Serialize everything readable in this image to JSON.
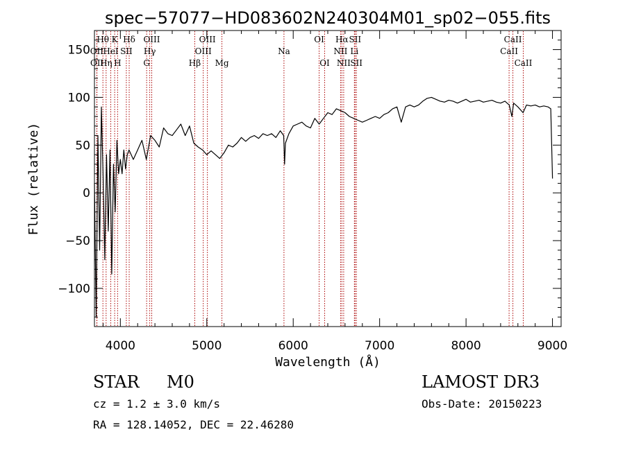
{
  "chart_data": {
    "type": "line",
    "title": "spec−57077−HD083602N240304M01_sp02−055.fits",
    "xlabel": "Wavelength (Å)",
    "ylabel": "Flux (relative)",
    "xlim": [
      3700,
      9100
    ],
    "ylim": [
      -140,
      170
    ],
    "x_ticks": [
      4000,
      5000,
      6000,
      7000,
      8000,
      9000
    ],
    "y_ticks": [
      -100,
      -50,
      0,
      50,
      100,
      150
    ],
    "y_tick_labels": [
      "−100",
      "−50",
      "0",
      "50",
      "100",
      "150"
    ],
    "series": [
      {
        "name": "spectrum",
        "x": [
          3700,
          3720,
          3740,
          3760,
          3780,
          3800,
          3820,
          3840,
          3860,
          3880,
          3900,
          3920,
          3940,
          3960,
          3980,
          4000,
          4020,
          4040,
          4060,
          4080,
          4100,
          4150,
          4200,
          4250,
          4300,
          4350,
          4400,
          4450,
          4500,
          4550,
          4600,
          4650,
          4700,
          4750,
          4800,
          4850,
          4900,
          4950,
          5000,
          5050,
          5100,
          5150,
          5200,
          5250,
          5300,
          5350,
          5400,
          5450,
          5500,
          5550,
          5600,
          5650,
          5700,
          5750,
          5800,
          5850,
          5890,
          5900,
          5910,
          5950,
          6000,
          6050,
          6100,
          6150,
          6200,
          6250,
          6300,
          6350,
          6400,
          6450,
          6500,
          6550,
          6600,
          6650,
          6700,
          6750,
          6800,
          6850,
          6900,
          6950,
          7000,
          7050,
          7100,
          7150,
          7200,
          7250,
          7300,
          7350,
          7400,
          7450,
          7500,
          7550,
          7600,
          7650,
          7700,
          7750,
          7800,
          7850,
          7900,
          7950,
          8000,
          8050,
          8100,
          8150,
          8200,
          8250,
          8300,
          8350,
          8400,
          8450,
          8500,
          8530,
          8550,
          8600,
          8660,
          8700,
          8750,
          8800,
          8850,
          8900,
          8950,
          8980,
          9000
        ],
        "values": [
          10,
          -130,
          60,
          -60,
          90,
          20,
          -70,
          40,
          -40,
          45,
          -85,
          30,
          -20,
          55,
          20,
          35,
          20,
          45,
          25,
          40,
          45,
          35,
          45,
          55,
          35,
          60,
          55,
          48,
          68,
          62,
          60,
          66,
          72,
          60,
          70,
          52,
          48,
          45,
          40,
          44,
          40,
          36,
          42,
          50,
          48,
          52,
          58,
          54,
          58,
          60,
          57,
          62,
          60,
          62,
          58,
          65,
          60,
          30,
          52,
          62,
          70,
          72,
          74,
          70,
          68,
          78,
          72,
          78,
          84,
          82,
          88,
          86,
          84,
          80,
          78,
          76,
          74,
          76,
          78,
          80,
          78,
          82,
          84,
          88,
          90,
          74,
          90,
          92,
          90,
          92,
          96,
          99,
          100,
          98,
          96,
          95,
          97,
          96,
          94,
          96,
          98,
          95,
          96,
          97,
          95,
          96,
          97,
          95,
          94,
          96,
          92,
          80,
          94,
          90,
          84,
          92,
          91,
          92,
          90,
          91,
          90,
          88,
          15
        ]
      }
    ],
    "line_groups": [
      {
        "row": 1,
        "items": [
          [
            "Hθ",
            3798
          ],
          [
            "K",
            3934
          ],
          [
            "Hδ",
            4102
          ],
          [
            "OIII",
            4363
          ],
          [
            "OIII",
            5007
          ],
          [
            "OI",
            6300
          ],
          [
            "Hα",
            6563
          ],
          [
            "SII",
            6716
          ],
          [
            "CaII",
            8542
          ]
        ]
      },
      {
        "row": 2,
        "items": [
          [
            "OII",
            3727
          ],
          [
            "HeI",
            3889
          ],
          [
            "SII",
            4069
          ],
          [
            "Hγ",
            4340
          ],
          [
            "OIII",
            4959
          ],
          [
            "Na",
            5893
          ],
          [
            "NII",
            6548
          ],
          [
            "Li",
            6708
          ],
          [
            "CaII",
            8498
          ]
        ]
      },
      {
        "row": 3,
        "items": [
          [
            "OII",
            3729
          ],
          [
            "Hη",
            3835
          ],
          [
            "H",
            3968
          ],
          [
            "G",
            4304
          ],
          [
            "Hβ",
            4861
          ],
          [
            "Mg",
            5175
          ],
          [
            "OI",
            6364
          ],
          [
            "NII",
            6584
          ],
          [
            "SII",
            6731
          ],
          [
            "CaII",
            8662
          ]
        ]
      }
    ],
    "line_color": "#aa0000",
    "spectrum_color": "#000000"
  },
  "info": {
    "class": "STAR",
    "subclass": "M0",
    "cz": "cz = 1.2 ± 3.0 km/s",
    "coords": "RA = 128.14052, DEC =  22.46280",
    "survey": "LAMOST DR3",
    "obsdate": "Obs-Date: 20150223"
  }
}
